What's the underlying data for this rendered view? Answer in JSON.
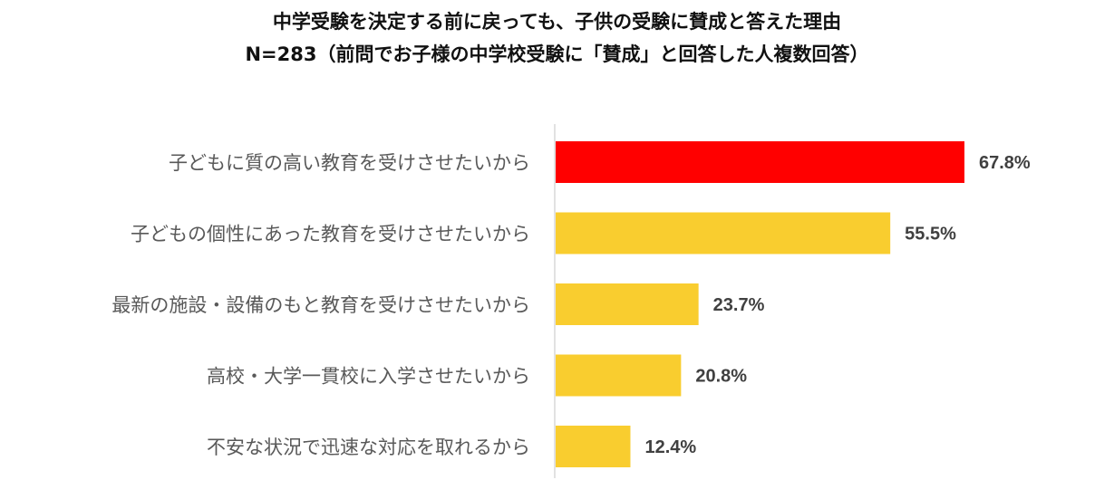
{
  "chart_data": {
    "type": "bar",
    "orientation": "horizontal",
    "title": "中学受験を決定する前に戻っても、子供の受験に賛成と答えた理由",
    "subtitle": "N=283（前問でお子様の中学校受験に「賛成」と回答した人複数回答）",
    "categories": [
      "子どもに質の高い教育を受けさせたいから",
      "子どもの個性にあった教育を受けさせたいから",
      "最新の施設・設備のもと教育を受けさせたいから",
      "高校・大学一貫校に入学させたいから",
      "不安な状況で迅速な対応を取れるから"
    ],
    "values": [
      67.8,
      55.5,
      23.7,
      20.8,
      12.4
    ],
    "value_labels": [
      "67.8%",
      "55.5%",
      "23.7%",
      "20.8%",
      "12.4%"
    ],
    "unit": "%",
    "xlim": [
      0,
      100
    ],
    "grid": false,
    "legend": "none",
    "colors": {
      "highlight": "#ff0000",
      "bar": "#f9cd2f",
      "axis": "#d9d9d9"
    }
  }
}
